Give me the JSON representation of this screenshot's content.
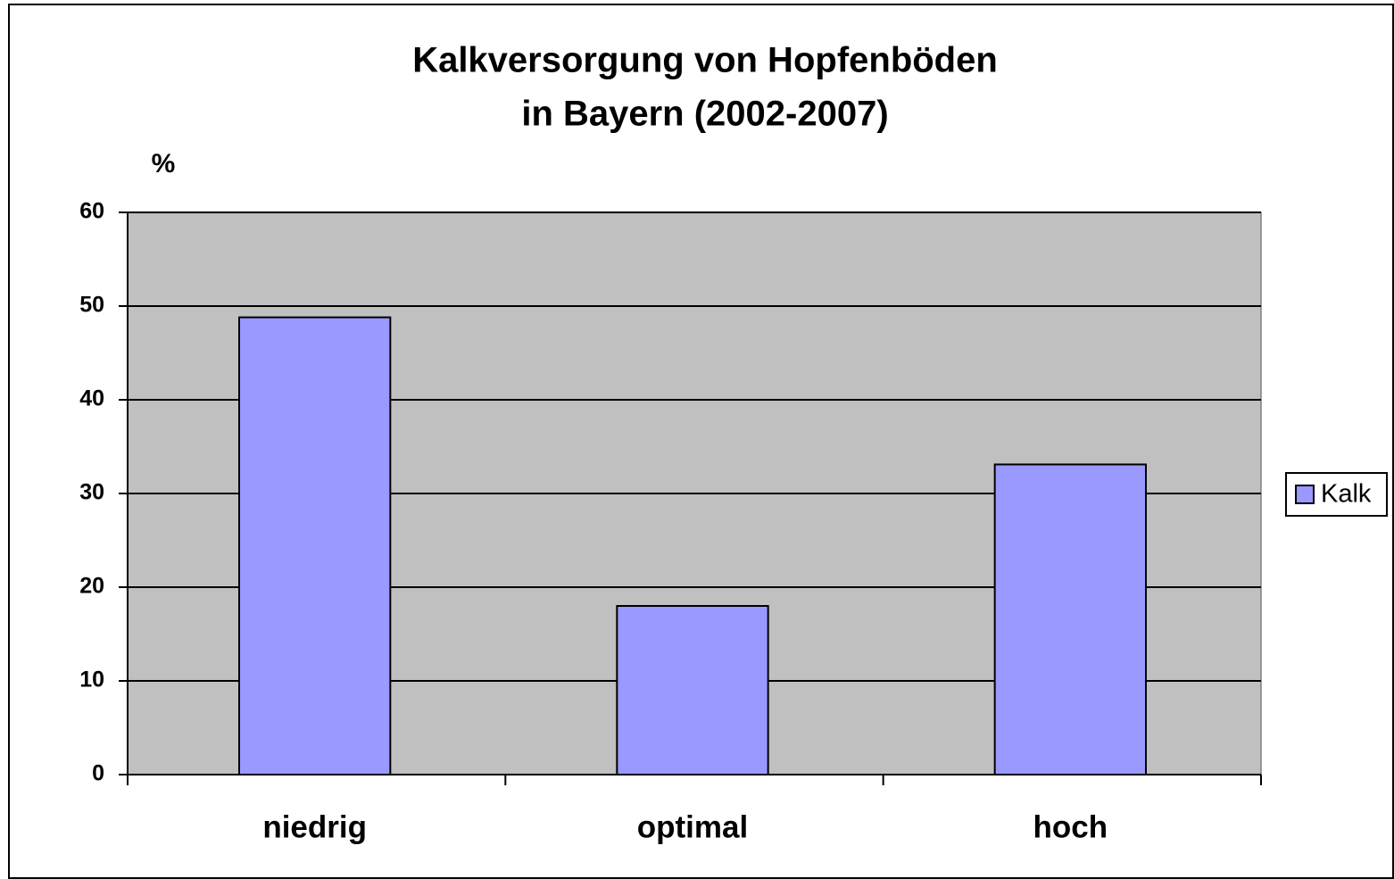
{
  "chart_data": {
    "type": "bar",
    "title": [
      "Kalkversorgung von Hopfenböden",
      "in Bayern (2002-2007)"
    ],
    "y_label": "%",
    "categories": [
      "niedrig",
      "optimal",
      "hoch"
    ],
    "series": [
      {
        "name": "Kalk",
        "color": "#9999ff",
        "values": [
          48.8,
          18.0,
          33.1
        ]
      }
    ],
    "ylim": [
      0,
      60
    ],
    "yticks": [
      0,
      10,
      20,
      30,
      40,
      50,
      60
    ],
    "grid": true,
    "legend": "right",
    "plot_background": "#c0c0c0"
  }
}
